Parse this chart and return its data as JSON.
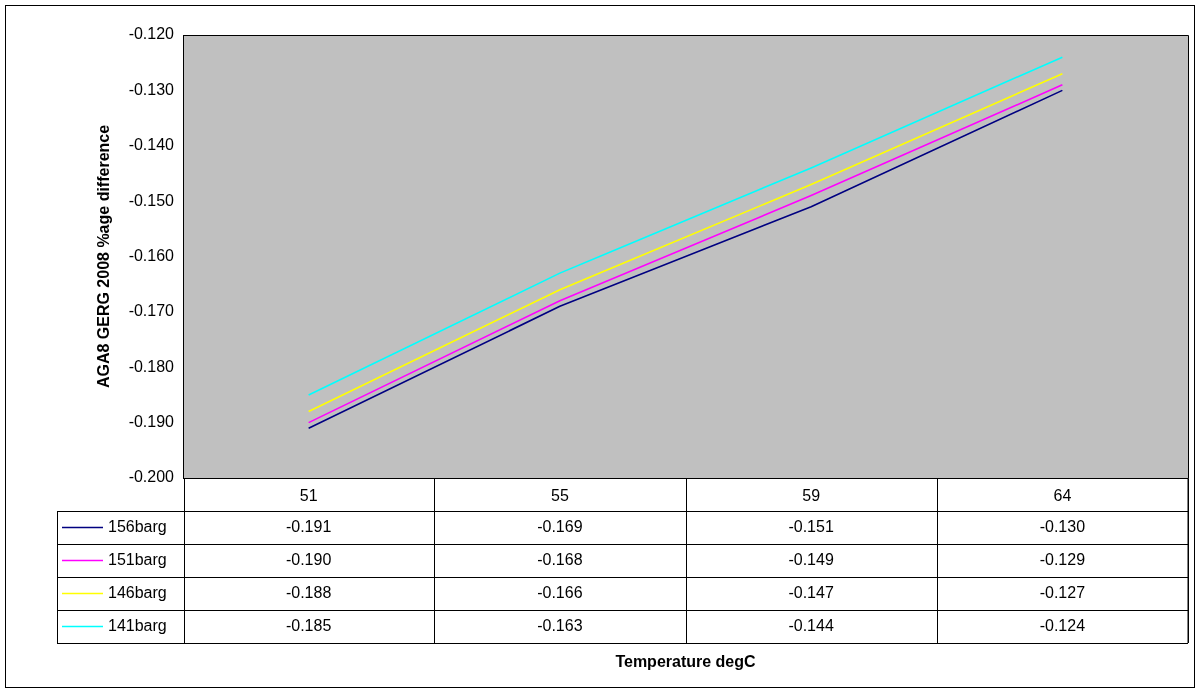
{
  "chart_data": {
    "type": "line",
    "annotations": [
      "Temperature degC"
    ],
    "ylabel": "AGA8 GERG 2008 %age difference",
    "categories": [
      "51",
      "55",
      "59",
      "64"
    ],
    "series": [
      {
        "name": "156barg",
        "color": "#000080",
        "values": [
          -0.191,
          -0.169,
          -0.151,
          -0.13
        ],
        "value_labels": [
          "-0.191",
          "-0.169",
          "-0.151",
          "-0.130"
        ]
      },
      {
        "name": "151barg",
        "color": "#ff00ff",
        "values": [
          -0.19,
          -0.168,
          -0.149,
          -0.129
        ],
        "value_labels": [
          "-0.190",
          "-0.168",
          "-0.149",
          "-0.129"
        ]
      },
      {
        "name": "146barg",
        "color": "#ffff00",
        "values": [
          -0.188,
          -0.166,
          -0.147,
          -0.127
        ],
        "value_labels": [
          "-0.188",
          "-0.166",
          "-0.147",
          "-0.127"
        ]
      },
      {
        "name": "141barg",
        "color": "#00ffff",
        "values": [
          -0.185,
          -0.163,
          -0.144,
          -0.124
        ],
        "value_labels": [
          "-0.185",
          "-0.163",
          "-0.144",
          "-0.124"
        ]
      }
    ],
    "ylim": [
      -0.2,
      -0.12
    ],
    "yticks": [
      {
        "value": -0.2,
        "label": "-0.200"
      },
      {
        "value": -0.19,
        "label": "-0.190"
      },
      {
        "value": -0.18,
        "label": "-0.180"
      },
      {
        "value": -0.17,
        "label": "-0.170"
      },
      {
        "value": -0.16,
        "label": "-0.160"
      },
      {
        "value": -0.15,
        "label": "-0.150"
      },
      {
        "value": -0.14,
        "label": "-0.140"
      },
      {
        "value": -0.13,
        "label": "-0.130"
      },
      {
        "value": -0.12,
        "label": "-0.120"
      }
    ],
    "grid": false,
    "legend": "bottom",
    "marker": "none",
    "line_style": "solid"
  }
}
